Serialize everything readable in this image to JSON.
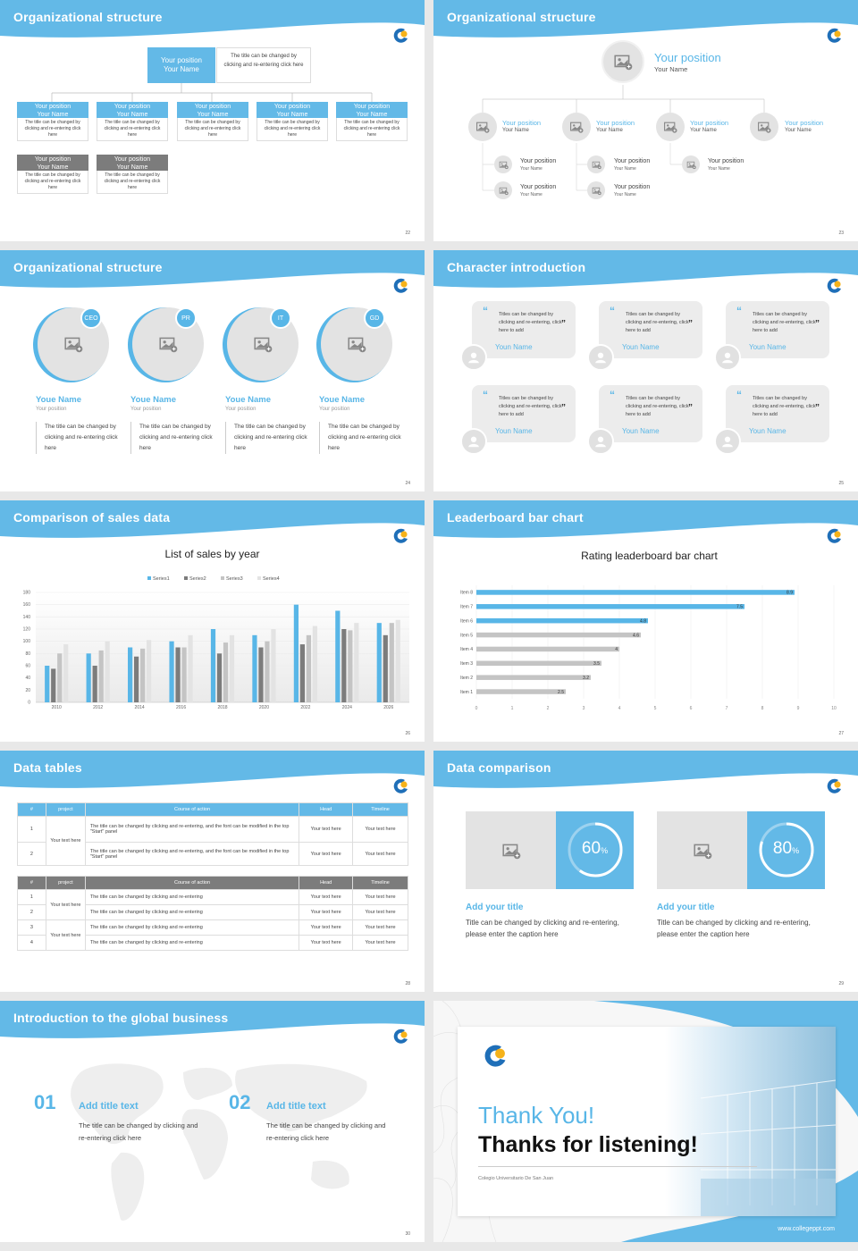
{
  "colors": {
    "accent": "#58b6e7",
    "header": "#63b9e7",
    "gray": "#7c7c7c",
    "light": "#e3e3e3"
  },
  "slides": {
    "s22": {
      "title": "Organizational structure",
      "page": "22",
      "top": {
        "pos": "Your position",
        "name": "Your Name",
        "desc": "The title can be changed by clicking and re-entering click here"
      },
      "boxes": [
        {
          "pos": "Your position",
          "name": "Your Name",
          "desc": "The title can be changed by clicking and re-entering click here"
        },
        {
          "pos": "Your position",
          "name": "Your Name",
          "desc": "The title can be changed by clicking and re-entering click here"
        },
        {
          "pos": "Your position",
          "name": "Your Name",
          "desc": "The title can be changed by clicking and re-entering click here"
        },
        {
          "pos": "Your position",
          "name": "Your Name",
          "desc": "The title can be changed by clicking and re-entering click here"
        },
        {
          "pos": "Your position",
          "name": "Your Name",
          "desc": "The title can be changed by clicking and re-entering click here"
        }
      ],
      "gray_boxes": [
        {
          "pos": "Your position",
          "name": "Your Name",
          "desc": "The title can be changed by clicking and re-entering click here"
        },
        {
          "pos": "Your position",
          "name": "Your Name",
          "desc": "The title can be changed by clicking and re-entering click here"
        }
      ]
    },
    "s23": {
      "title": "Organizational structure",
      "page": "23",
      "top": {
        "pos": "Your position",
        "name": "Your Name"
      },
      "mid": [
        {
          "pos": "Your position",
          "name": "Your Name"
        },
        {
          "pos": "Your position",
          "name": "Your Name"
        },
        {
          "pos": "Your position",
          "name": "Your Name"
        },
        {
          "pos": "Your position",
          "name": "Your Name"
        }
      ],
      "sub": [
        {
          "pos": "Your position",
          "name": "Your Name"
        },
        {
          "pos": "Your position",
          "name": "Your Name"
        },
        {
          "pos": "Your position",
          "name": "Your Name"
        },
        {
          "pos": "Your position",
          "name": "Your Name"
        },
        {
          "pos": "Your position",
          "name": "Your Name"
        }
      ]
    },
    "s24": {
      "title": "Organizational structure",
      "page": "24",
      "people": [
        {
          "badge": "CEO",
          "name": "Youe Name",
          "pos": "Your position",
          "desc": "The title can be changed by clicking and re-entering click here"
        },
        {
          "badge": "PR",
          "name": "Youe Name",
          "pos": "Your position",
          "desc": "The title can be changed by clicking and re-entering click here"
        },
        {
          "badge": "IT",
          "name": "Youe Name",
          "pos": "Your position",
          "desc": "The title can be changed by clicking and re-entering click here"
        },
        {
          "badge": "GD",
          "name": "Youe Name",
          "pos": "Your position",
          "desc": "The title can be changed by clicking and re-entering click here"
        }
      ]
    },
    "s25": {
      "title": "Character introduction",
      "page": "25",
      "quotes": [
        {
          "text": "Titles can be changed by clicking and re-entering, click here to add",
          "name": "Youn Name"
        },
        {
          "text": "Titles can be changed by clicking and re-entering, click here to add",
          "name": "Youn Name"
        },
        {
          "text": "Titles can be changed by clicking and re-entering, click here to add",
          "name": "Youn Name"
        },
        {
          "text": "Titles can be changed by clicking and re-entering, click here to add",
          "name": "Youn Name"
        },
        {
          "text": "Titles can be changed by clicking and re-entering, click here to add",
          "name": "Youn Name"
        },
        {
          "text": "Titles can be changed by clicking and re-entering, click here to add",
          "name": "Youn Name"
        }
      ]
    },
    "s26": {
      "title": "Comparison of sales data",
      "page": "26"
    },
    "s27": {
      "title": "Leaderboard bar chart",
      "page": "27"
    },
    "s28": {
      "title": "Data tables",
      "page": "28",
      "head": [
        "#",
        "project",
        "Course of action",
        "Head",
        "Timeline"
      ],
      "t1_project": "Your text here",
      "t1_rows": [
        {
          "n": "1",
          "action": "The title can be changed by clicking and re-entering, and the font can be modified in the top \"Start\" panel",
          "head": "Your text here",
          "time": "Your text here"
        },
        {
          "n": "2",
          "action": "The title can be changed by clicking and re-entering, and the font can be modified in the top \"Start\" panel",
          "head": "Your text here",
          "time": "Your text here"
        }
      ],
      "t2_projects": [
        "Your text here",
        "Your text here"
      ],
      "t2_rows": [
        {
          "n": "1",
          "action": "The title can be changed by clicking and re-entering",
          "head": "Your text here",
          "time": "Your text here"
        },
        {
          "n": "2",
          "action": "The title can be changed by clicking and re-entering",
          "head": "Your text here",
          "time": "Your text here"
        },
        {
          "n": "3",
          "action": "The title can be changed by clicking and re-entering",
          "head": "Your text here",
          "time": "Your text here"
        },
        {
          "n": "4",
          "action": "The title can be changed by clicking and re-entering",
          "head": "Your text here",
          "time": "Your text here"
        }
      ]
    },
    "s29": {
      "title": "Data comparison",
      "page": "29",
      "items": [
        {
          "pct": "60",
          "unit": "%",
          "value": 0.6,
          "title": "Add your title",
          "desc": "Title can be changed by clicking and re-entering, please enter the caption here"
        },
        {
          "pct": "80",
          "unit": "%",
          "value": 0.8,
          "title": "Add your title",
          "desc": "Title can be changed by clicking and re-entering, please enter the caption here"
        }
      ]
    },
    "s30": {
      "title": "Introduction to the global business",
      "page": "30",
      "items": [
        {
          "num": "01",
          "title": "Add title text",
          "desc": "The title can be changed by clicking and re-entering click here"
        },
        {
          "num": "02",
          "title": "Add title text",
          "desc": "The title can be changed by clicking and re-entering click here"
        }
      ]
    },
    "s31": {
      "thank": "Thank You!",
      "thanks": "Thanks for listening!",
      "school": "Colegio Universitario De San Juan",
      "site": "www.collegeppt.com"
    }
  },
  "chart_data": [
    {
      "type": "bar",
      "title": "List of sales by year",
      "categories": [
        "2010",
        "2012",
        "2014",
        "2016",
        "2018",
        "2020",
        "2022",
        "2024",
        "2026"
      ],
      "series": [
        {
          "name": "Series1",
          "color": "#58b6e7",
          "values": [
            60,
            80,
            90,
            100,
            120,
            110,
            160,
            150,
            130
          ]
        },
        {
          "name": "Series2",
          "color": "#7c7c7c",
          "values": [
            55,
            60,
            75,
            90,
            80,
            90,
            95,
            120,
            110
          ]
        },
        {
          "name": "Series3",
          "color": "#c4c4c4",
          "values": [
            80,
            85,
            88,
            90,
            98,
            100,
            110,
            118,
            130
          ]
        },
        {
          "name": "Series4",
          "color": "#e3e3e3",
          "values": [
            95,
            100,
            102,
            110,
            110,
            120,
            125,
            130,
            135
          ]
        }
      ],
      "ylim": [
        0,
        180
      ],
      "yticks": [
        "0",
        "20",
        "40",
        "60",
        "80",
        "100",
        "120",
        "140",
        "160",
        "180"
      ],
      "legend": "top"
    },
    {
      "type": "bar",
      "orientation": "horizontal",
      "title": "Rating leaderboard bar chart",
      "categories": [
        "Item 8",
        "Item 7",
        "Item 6",
        "Item 5",
        "Item 4",
        "Item 3",
        "Item 2",
        "Item 1"
      ],
      "values": [
        8.9,
        7.5,
        4.8,
        4.6,
        4,
        3.5,
        3.2,
        2.5
      ],
      "labels": [
        "8.9",
        "7.5",
        "4.8",
        "4.6",
        "4",
        "3.5",
        "3.2",
        "2.5"
      ],
      "colors": [
        "#58b6e7",
        "#58b6e7",
        "#58b6e7",
        "#c4c4c4",
        "#c4c4c4",
        "#c4c4c4",
        "#c4c4c4",
        "#c4c4c4"
      ],
      "xlim": [
        0,
        10
      ],
      "xticks": [
        "0",
        "1",
        "2",
        "3",
        "4",
        "5",
        "6",
        "7",
        "8",
        "9",
        "10"
      ]
    }
  ]
}
